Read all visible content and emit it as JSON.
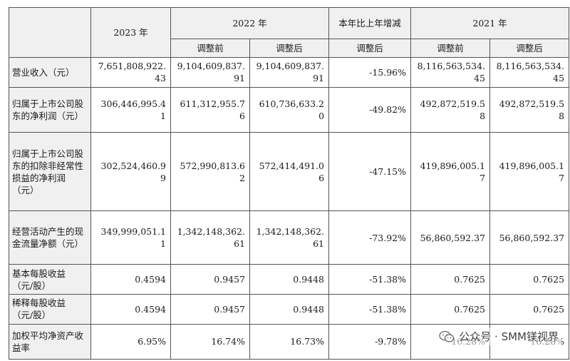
{
  "header": {
    "col_2023": "2023 年",
    "col_2022": "2022 年",
    "col_change": "本年比上年增减",
    "col_2021": "2021 年",
    "sub_2022_before": "调整前",
    "sub_2022_after": "调整后",
    "sub_change": "调整后",
    "sub_2021_before": "调整前",
    "sub_2021_after": "调整后"
  },
  "rows": [
    {
      "label": "营业收入（元）",
      "v2023": "7,651,808,922.43",
      "v2022b": "9,104,609,837.91",
      "v2022a": "9,104,609,837.91",
      "change": "-15.96%",
      "v2021b": "8,116,563,534.45",
      "v2021a": "8,116,563,534.45"
    },
    {
      "label": "归属于上市公司股东的净利润（元）",
      "v2023": "306,446,995.41",
      "v2022b": "611,312,955.76",
      "v2022a": "610,736,633.20",
      "change": "-49.82%",
      "v2021b": "492,872,519.58",
      "v2021a": "492,872,519.58"
    },
    {
      "label": "归属于上市公司股东的扣除非经常性损益的净利润（元）",
      "v2023": "302,524,460.99",
      "v2022b": "572,990,813.62",
      "v2022a": "572,414,491.06",
      "change": "-47.15%",
      "v2021b": "419,896,005.17",
      "v2021a": "419,896,005.17"
    },
    {
      "label": "经营活动产生的现金流量净额（元）",
      "v2023": "349,999,051.11",
      "v2022b": "1,342,148,362.61",
      "v2022a": "1,342,148,362.61",
      "change": "-73.92%",
      "v2021b": "56,860,592.37",
      "v2021a": "56,860,592.37"
    },
    {
      "label": "基本每股收益（元/股）",
      "v2023": "0.4594",
      "v2022b": "0.9457",
      "v2022a": "0.9448",
      "change": "-51.38%",
      "v2021b": "0.7625",
      "v2021a": "0.7625"
    },
    {
      "label": "稀释每股收益（元/股）",
      "v2023": "0.4594",
      "v2022b": "0.9457",
      "v2022a": "0.9448",
      "change": "-51.38%",
      "v2021b": "0.7625",
      "v2021a": "0.7625"
    },
    {
      "label": "加权平均净资产收益率",
      "v2023": "6.95%",
      "v2022b": "16.74%",
      "v2022a": "16.73%",
      "change": "-9.78%",
      "v2021b": "16.28%",
      "v2021a": "16.28%"
    }
  ],
  "watermark": {
    "text": "公众号 · SMM镁视界",
    "icon": "wechat-icon"
  }
}
